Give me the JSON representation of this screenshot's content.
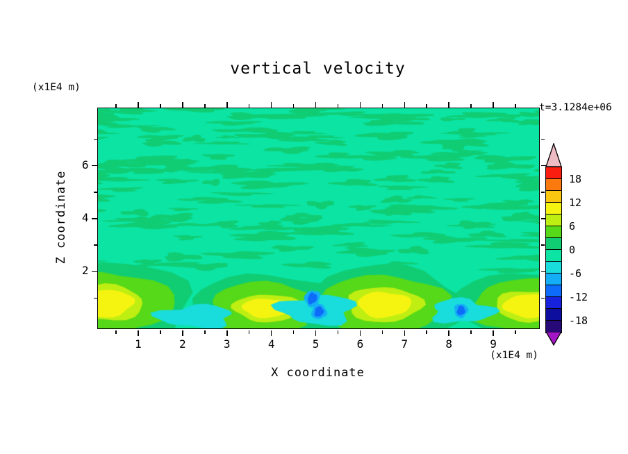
{
  "title": "vertical velocity",
  "time_label": "t=3.1284e+06",
  "x_axis": {
    "label": "X coordinate",
    "unit": "(x1E4 m)"
  },
  "y_axis": {
    "label": "Z coordinate",
    "unit": "(x1E4 m)"
  },
  "colorbar": {
    "labels": [
      "18",
      "12",
      "6",
      "0",
      "-6",
      "-12",
      "-18"
    ],
    "top_arrow_color": "#eebac4",
    "bottom_arrow_color": "#a315c5",
    "segments": [
      {
        "min": 18,
        "max": 21,
        "color": "#fb1d10"
      },
      {
        "min": 15,
        "max": 18,
        "color": "#fb7a10"
      },
      {
        "min": 12,
        "max": 15,
        "color": "#fbc610"
      },
      {
        "min": 9,
        "max": 12,
        "color": "#f4f410"
      },
      {
        "min": 6,
        "max": 9,
        "color": "#bfee12"
      },
      {
        "min": 3,
        "max": 6,
        "color": "#55d918"
      },
      {
        "min": 0,
        "max": 3,
        "color": "#10cd74"
      },
      {
        "min": -3,
        "max": 0,
        "color": "#0ce4a4"
      },
      {
        "min": -6,
        "max": -3,
        "color": "#19dcdc"
      },
      {
        "min": -9,
        "max": -6,
        "color": "#14aef6"
      },
      {
        "min": -12,
        "max": -9,
        "color": "#0e6cfa"
      },
      {
        "min": -15,
        "max": -12,
        "color": "#1722dc"
      },
      {
        "min": -18,
        "max": -15,
        "color": "#0e0e9e"
      },
      {
        "min": -21,
        "max": -18,
        "color": "#270a78"
      }
    ]
  },
  "chart_data": {
    "type": "heatmap",
    "field": "vertical velocity",
    "time": "t=3.1284e+06",
    "xlabel": "X coordinate",
    "xunit": "(x1E4 m)",
    "ylabel": "Z coordinate",
    "yunit": "(x1E4 m)",
    "x_range": [
      0.1,
      10.04
    ],
    "z_range": [
      -0.15,
      8.15
    ],
    "x_ticks": [
      1,
      2,
      3,
      4,
      5,
      6,
      7,
      8,
      9
    ],
    "x_minor_ticks": [
      0.5,
      1.5,
      2.5,
      3.5,
      4.5,
      5.5,
      6.5,
      7.5,
      8.5,
      9.5
    ],
    "y_ticks": [
      2,
      4,
      6
    ],
    "y_minor_ticks": [
      1,
      3,
      5,
      7
    ],
    "contour_interval": 3,
    "colorbar_tick_values": [
      18,
      12,
      6,
      0,
      -6,
      -12,
      -18
    ],
    "background_level": -3,
    "texture": {
      "seed": 23,
      "count": 170,
      "level": 0,
      "z_min": 1.85,
      "z_span": 6.35,
      "top_bias": 0.7
    },
    "updrafts": [
      {
        "x": 0.25,
        "z": 0.8,
        "rings": [
          {
            "level": 0,
            "rx": 2.0,
            "rz": 1.55
          },
          {
            "level": 3,
            "rx": 1.55,
            "rz": 1.2
          },
          {
            "level": 6,
            "rx": 0.88,
            "rz": 0.68
          },
          {
            "level": 9,
            "rx": 0.65,
            "rz": 0.52
          }
        ]
      },
      {
        "x": 3.9,
        "z": 0.62,
        "rings": [
          {
            "level": 0,
            "rx": 1.65,
            "rz": 1.3
          },
          {
            "level": 3,
            "rx": 1.28,
            "rz": 0.98
          },
          {
            "level": 6,
            "rx": 0.75,
            "rz": 0.52
          },
          {
            "level": 9,
            "rx": 0.55,
            "rz": 0.36
          }
        ]
      },
      {
        "x": 6.55,
        "z": 0.75,
        "rings": [
          {
            "level": 0,
            "rx": 1.8,
            "rz": 1.45
          },
          {
            "level": 3,
            "rx": 1.42,
            "rz": 1.12
          },
          {
            "level": 6,
            "rx": 0.85,
            "rz": 0.66
          },
          {
            "level": 9,
            "rx": 0.6,
            "rz": 0.48
          }
        ]
      },
      {
        "x": 9.8,
        "z": 0.7,
        "rings": [
          {
            "level": 0,
            "rx": 1.7,
            "rz": 1.3
          },
          {
            "level": 3,
            "rx": 1.3,
            "rz": 1.0
          },
          {
            "level": 6,
            "rx": 0.75,
            "rz": 0.58
          },
          {
            "level": 9,
            "rx": 0.55,
            "rz": 0.45
          }
        ]
      }
    ],
    "downdrafts": [
      {
        "x": 2.3,
        "z": 0.3,
        "rx": 0.85,
        "rz": 0.42,
        "level": -6,
        "cores": []
      },
      {
        "x": 5.05,
        "z": 0.55,
        "rx": 0.85,
        "rz": 0.55,
        "level": -6,
        "cores": [
          {
            "x": 4.93,
            "z": 0.98,
            "rx": 0.1,
            "rz": 0.22,
            "rot": 25,
            "level": -12,
            "ring_level": -9
          },
          {
            "x": 5.08,
            "z": 0.48,
            "rx": 0.1,
            "rz": 0.2,
            "rot": 25,
            "level": -12,
            "ring_level": -9
          }
        ]
      },
      {
        "x": 8.3,
        "z": 0.5,
        "rx": 0.7,
        "rz": 0.45,
        "level": -6,
        "cores": [
          {
            "x": 8.28,
            "z": 0.52,
            "rx": 0.09,
            "rz": 0.18,
            "rot": 15,
            "level": -12,
            "ring_level": -9
          }
        ]
      }
    ]
  }
}
